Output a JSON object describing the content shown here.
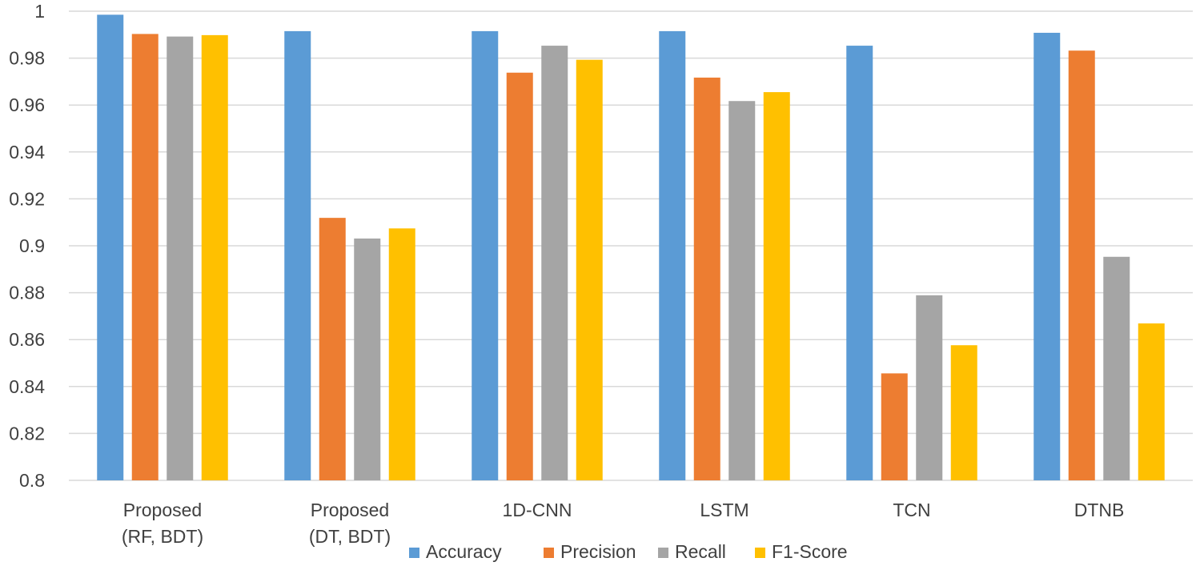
{
  "chart_data": {
    "type": "bar",
    "title": "",
    "xlabel": "",
    "ylabel": "",
    "ylim": [
      0.8,
      1.0
    ],
    "ytick_step": 0.02,
    "yticks": [
      "0.8",
      "0.82",
      "0.84",
      "0.86",
      "0.88",
      "0.9",
      "0.92",
      "0.94",
      "0.96",
      "0.98",
      "1"
    ],
    "grid": true,
    "legend_position": "bottom",
    "categories": [
      [
        "Proposed",
        "(RF, BDT)"
      ],
      [
        "Proposed",
        "(DT, BDT)"
      ],
      [
        "1D-CNN"
      ],
      [
        "LSTM"
      ],
      [
        "TCN"
      ],
      [
        "DTNB"
      ]
    ],
    "series": [
      {
        "name": "Accuracy",
        "color": "#5b9bd5",
        "values": [
          0.9985,
          0.9915,
          0.9915,
          0.9915,
          0.9853,
          0.9908
        ]
      },
      {
        "name": "Precision",
        "color": "#ed7d31",
        "values": [
          0.9903,
          0.9119,
          0.9738,
          0.9717,
          0.8456,
          0.9832
        ]
      },
      {
        "name": "Recall",
        "color": "#a5a5a5",
        "values": [
          0.9892,
          0.9031,
          0.9853,
          0.9617,
          0.8789,
          0.8953
        ]
      },
      {
        "name": "F1-Score",
        "color": "#ffc000",
        "values": [
          0.9898,
          0.9074,
          0.9793,
          0.9655,
          0.8576,
          0.8669
        ]
      }
    ]
  }
}
